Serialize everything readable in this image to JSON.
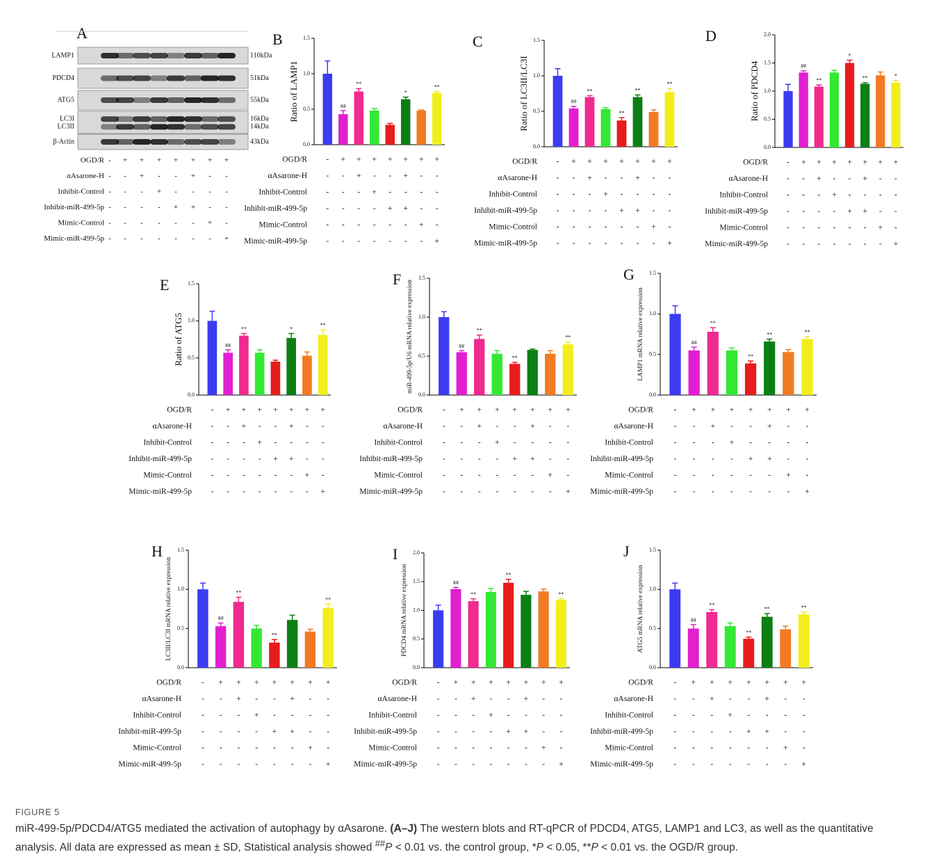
{
  "blot": {
    "panel": "A",
    "proteins": [
      "LAMP1",
      "PDCD4",
      "ATG5",
      "LC3I",
      "LC3II",
      "β-Actin"
    ],
    "sizes": [
      "110kDa",
      "51kDa",
      "55kDa",
      "16kDa",
      "14kDa",
      "43kDa"
    ]
  },
  "treatments": {
    "rows": [
      {
        "label": "OGD/R",
        "marks": [
          "-",
          "+",
          "+",
          "+",
          "+",
          "+",
          "+",
          "+"
        ]
      },
      {
        "label": "αAsarone-H",
        "marks": [
          "-",
          "-",
          "+",
          "-",
          "-",
          "+",
          "-",
          "-"
        ]
      },
      {
        "label": "Inhibit-Control",
        "marks": [
          "-",
          "-",
          "-",
          "+",
          "-",
          "-",
          "-",
          "-"
        ]
      },
      {
        "label": "Inhibit-miR-499-5p",
        "marks": [
          "-",
          "-",
          "-",
          "-",
          "+",
          "+",
          "-",
          "-"
        ]
      },
      {
        "label": "Mimic-Control",
        "marks": [
          "-",
          "-",
          "-",
          "-",
          "-",
          "-",
          "+",
          "-"
        ]
      },
      {
        "label": "Mimic-miR-499-5p",
        "marks": [
          "-",
          "-",
          "-",
          "-",
          "-",
          "-",
          "-",
          "+"
        ]
      }
    ]
  },
  "bar_colors": [
    "#3b3bf2",
    "#e21fd0",
    "#f02a8e",
    "#33e833",
    "#e81c1c",
    "#0c7f14",
    "#f27a22",
    "#f2ee1c"
  ],
  "chart_data": [
    {
      "type": "bar",
      "panel": "B",
      "ylabel": "Ratio of LAMP1",
      "ylim": [
        0,
        1.5
      ],
      "yticks": [
        {
          "value": 0,
          "label": "0.0"
        },
        0.5,
        {
          "value": 1,
          "label": "1.0"
        },
        1.5
      ],
      "values": [
        1.0,
        0.43,
        0.75,
        0.48,
        0.28,
        0.64,
        0.48,
        0.73
      ],
      "errors": [
        0.18,
        0.05,
        0.04,
        0.03,
        0.02,
        0.03,
        0.01,
        0.02
      ],
      "annotations": [
        null,
        "##",
        "**",
        null,
        null,
        "*",
        null,
        "**"
      ]
    },
    {
      "type": "bar",
      "panel": "C",
      "ylabel": "Ratio of LC3II/LC3I",
      "ylim": [
        0,
        1.5
      ],
      "yticks": [
        {
          "value": 0,
          "label": "0.0"
        },
        0.5,
        {
          "value": 1,
          "label": "1.0"
        },
        1.5
      ],
      "values": [
        1.0,
        0.54,
        0.7,
        0.53,
        0.37,
        0.7,
        0.49,
        0.77
      ],
      "errors": [
        0.1,
        0.03,
        0.02,
        0.02,
        0.04,
        0.03,
        0.03,
        0.05
      ],
      "annotations": [
        null,
        "##",
        "**",
        null,
        "**",
        "**",
        null,
        "**"
      ]
    },
    {
      "type": "bar",
      "panel": "D",
      "ylabel": "Ratio of PDCD4",
      "ylim": [
        0,
        2
      ],
      "yticks": [
        {
          "value": 0,
          "label": "0.0"
        },
        0.5,
        {
          "value": 1,
          "label": "1.0"
        },
        1.5,
        {
          "value": 2,
          "label": "2.0"
        }
      ],
      "values": [
        1.0,
        1.33,
        1.08,
        1.33,
        1.5,
        1.13,
        1.28,
        1.15
      ],
      "errors": [
        0.12,
        0.03,
        0.03,
        0.04,
        0.05,
        0.02,
        0.06,
        0.04
      ],
      "annotations": [
        null,
        "##",
        "**",
        null,
        "*",
        "**",
        null,
        "*"
      ]
    },
    {
      "type": "bar",
      "panel": "E",
      "ylabel": "Ratio of ATG5",
      "ylim": [
        0,
        1.5
      ],
      "yticks": [
        {
          "value": 0,
          "label": "0.0"
        },
        0.5,
        {
          "value": 1,
          "label": "1.0"
        },
        1.5
      ],
      "values": [
        1.0,
        0.57,
        0.8,
        0.57,
        0.45,
        0.77,
        0.53,
        0.81
      ],
      "errors": [
        0.13,
        0.04,
        0.03,
        0.04,
        0.02,
        0.06,
        0.05,
        0.07
      ],
      "annotations": [
        null,
        "##",
        "**",
        null,
        null,
        "*",
        null,
        "**"
      ]
    },
    {
      "type": "bar",
      "panel": "F",
      "ylabel": "miR-499-5p/U6 mRNA relative expression",
      "ylim": [
        0,
        1.5
      ],
      "yticks": [
        {
          "value": 0,
          "label": "0.0"
        },
        0.5,
        {
          "value": 1,
          "label": "1.0"
        },
        1.5
      ],
      "values": [
        1.0,
        0.55,
        0.72,
        0.53,
        0.4,
        0.58,
        0.53,
        0.65
      ],
      "errors": [
        0.07,
        0.02,
        0.05,
        0.04,
        0.02,
        0.01,
        0.04,
        0.03
      ],
      "annotations": [
        null,
        "##",
        "**",
        null,
        "**",
        null,
        null,
        "**"
      ]
    },
    {
      "type": "bar",
      "panel": "G",
      "ylabel": "LAMP1 mRNA relative expression",
      "ylim": [
        0,
        1.5
      ],
      "yticks": [
        {
          "value": 0,
          "label": "0.0"
        },
        0.5,
        {
          "value": 1,
          "label": "1.0"
        },
        1.5
      ],
      "values": [
        1.0,
        0.55,
        0.78,
        0.55,
        0.39,
        0.66,
        0.53,
        0.69
      ],
      "errors": [
        0.1,
        0.04,
        0.05,
        0.03,
        0.03,
        0.03,
        0.03,
        0.03
      ],
      "annotations": [
        null,
        "##",
        "**",
        null,
        "**",
        "**",
        null,
        "**"
      ]
    },
    {
      "type": "bar",
      "panel": "H",
      "ylabel": "LC3II/LC3I mRNA relative expression",
      "ylim": [
        0,
        1.5
      ],
      "yticks": [
        {
          "value": 0,
          "label": "0.0"
        },
        0.5,
        {
          "value": 1,
          "label": "1.0"
        },
        1.5
      ],
      "values": [
        1.0,
        0.53,
        0.84,
        0.5,
        0.32,
        0.61,
        0.46,
        0.76
      ],
      "errors": [
        0.08,
        0.04,
        0.06,
        0.04,
        0.04,
        0.06,
        0.03,
        0.05
      ],
      "annotations": [
        null,
        "##",
        "**",
        null,
        "**",
        null,
        null,
        "**"
      ]
    },
    {
      "type": "bar",
      "panel": "I",
      "ylabel": "PDCD4 mRNA relative expression",
      "ylim": [
        0,
        2
      ],
      "yticks": [
        {
          "value": 0,
          "label": "0.0"
        },
        0.5,
        {
          "value": 1,
          "label": "1.0"
        },
        1.5,
        {
          "value": 2,
          "label": "2.0"
        }
      ],
      "values": [
        1.0,
        1.37,
        1.16,
        1.32,
        1.48,
        1.27,
        1.33,
        1.18
      ],
      "errors": [
        0.09,
        0.03,
        0.04,
        0.06,
        0.06,
        0.06,
        0.04,
        0.02
      ],
      "annotations": [
        null,
        "##",
        "**",
        null,
        "**",
        null,
        null,
        "**"
      ]
    },
    {
      "type": "bar",
      "panel": "J",
      "ylabel": "ATG5 mRNA relative expression",
      "ylim": [
        0,
        1.5
      ],
      "yticks": [
        {
          "value": 0,
          "label": "0.0"
        },
        0.5,
        {
          "value": 1,
          "label": "1.0"
        },
        1.5
      ],
      "values": [
        1.0,
        0.5,
        0.71,
        0.53,
        0.37,
        0.65,
        0.49,
        0.68
      ],
      "errors": [
        0.08,
        0.05,
        0.03,
        0.04,
        0.02,
        0.04,
        0.04,
        0.03
      ],
      "annotations": [
        null,
        "##",
        "**",
        null,
        "**",
        "**",
        null,
        "**"
      ]
    }
  ],
  "caption": {
    "label": "FIGURE 5",
    "segments": [
      "miR-499-5p/PDCD4/ATG5 mediated the activation of autophagy by αAsarone.",
      "(A–J)",
      "The western blots and RT-qPCR of PDCD4, ATG5, LAMP1 and LC3, as well as the quantitative analysis. All data are expressed as mean ± SD, Statistical analysis showed",
      "##",
      "P",
      "< 0.01 vs. the control group, *",
      "P",
      "< 0.05, **",
      "P",
      "< 0.01 vs. the OGD/R group."
    ]
  }
}
